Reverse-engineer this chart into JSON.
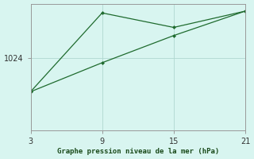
{
  "background_color": "#d8f5f0",
  "line_color": "#1f6b2e",
  "grid_color": "#b0d8d0",
  "xlabel": "Graphe pression niveau de la mer (hPa)",
  "ylabel_tick": "1024",
  "xticks": [
    3,
    9,
    15,
    21
  ],
  "ytick_val": 1024,
  "xlim": [
    3,
    21
  ],
  "ylim": [
    1016,
    1030
  ],
  "line1_x": [
    3,
    9,
    15,
    21
  ],
  "line1_y": [
    1020.3,
    1029.0,
    1027.4,
    1029.2
  ],
  "line2_x": [
    3,
    9,
    15,
    21
  ],
  "line2_y": [
    1020.3,
    1023.5,
    1026.5,
    1029.2
  ],
  "spine_color": "#999999",
  "tick_fontsize": 7,
  "xlabel_fontsize": 6.5
}
